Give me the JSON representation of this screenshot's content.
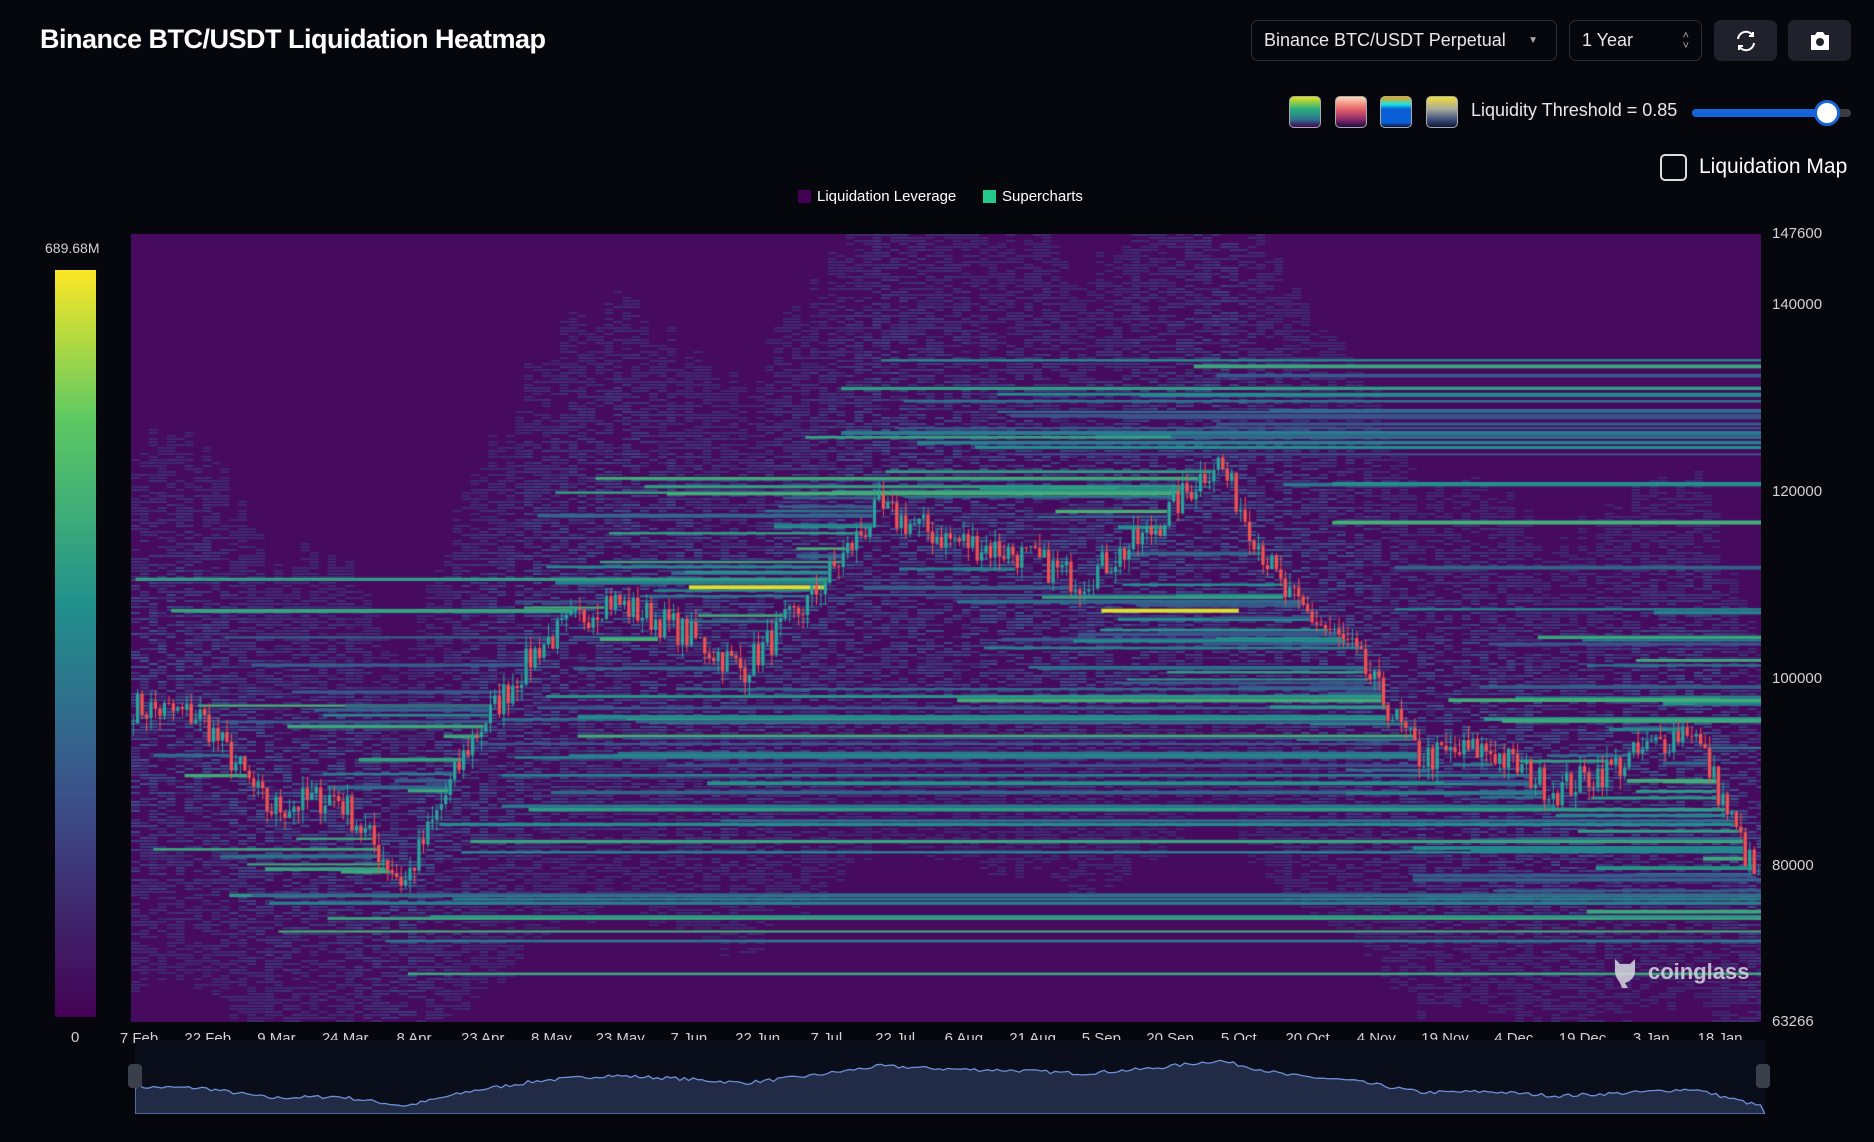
{
  "header": {
    "title": "Binance BTC/USDT Liquidation Heatmap",
    "pair_select": "Binance BTC/USDT Perpetual",
    "range_select": "1 Year",
    "refresh_icon": "refresh-icon",
    "camera_icon": "camera-icon"
  },
  "controls": {
    "palettes": [
      "viridis",
      "magma",
      "blue-jet",
      "cividis"
    ],
    "threshold_label": "Liquidity Threshold = 0.85",
    "threshold_value": 0.85,
    "liquidation_map_label": "Liquidation Map",
    "liquidation_map_checked": false
  },
  "colors": {
    "background": "#05070d",
    "heat_low": "#440154",
    "heat_high": "#fde725",
    "candle_up": "#26a69a",
    "candle_down": "#ef5350",
    "accent": "#1565d8"
  },
  "colorbar": {
    "max_label": "689.68M",
    "min_label": "0"
  },
  "watermark": "coinglass",
  "chart_data": {
    "type": "heatmap",
    "title": "Binance BTC/USDT Liquidation Heatmap",
    "legend": [
      {
        "name": "Liquidation Leverage",
        "color": "#440154"
      },
      {
        "name": "Supercharts",
        "color": "#22c98a"
      }
    ],
    "legend_position": "top-center",
    "y_ticks": [
      "147600",
      "140000",
      "120000",
      "100000",
      "80000",
      "63266"
    ],
    "ylim": [
      63266,
      147600
    ],
    "x_ticks": [
      "7 Feb",
      "22 Feb",
      "9 Mar",
      "24 Mar",
      "8 Apr",
      "23 Apr",
      "8 May",
      "23 May",
      "7 Jun",
      "22 Jun",
      "7 Jul",
      "22 Jul",
      "6 Aug",
      "21 Aug",
      "5 Sep",
      "20 Sep",
      "5 Oct",
      "20 Oct",
      "4 Nov",
      "19 Nov",
      "4 Dec",
      "19 Dec",
      "3 Jan",
      "18 Jan"
    ],
    "approx_price_at_ticks": [
      97000,
      96000,
      86000,
      87500,
      78000,
      93500,
      103500,
      108500,
      105500,
      101000,
      108500,
      118000,
      115000,
      113500,
      110500,
      115500,
      123500,
      109000,
      103000,
      91500,
      92500,
      88000,
      91000,
      95000
    ],
    "end_price": 78000,
    "highlight_levels": [
      {
        "price": 110000,
        "range": [
          "7 Jun",
          "7 Jul"
        ]
      },
      {
        "price": 107500,
        "range": [
          "5 Sep",
          "5 Oct"
        ]
      }
    ]
  }
}
